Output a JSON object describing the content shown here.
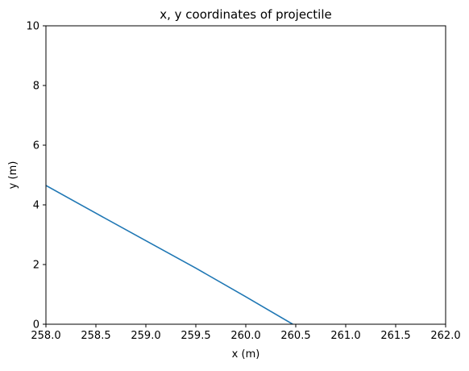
{
  "chart_data": {
    "type": "line",
    "title": "x, y coordinates of projectile",
    "xlabel": "x (m)",
    "ylabel": "y (m)",
    "xlim": [
      258.0,
      262.0
    ],
    "ylim": [
      0,
      10
    ],
    "x_ticks": [
      "258.0",
      "258.5",
      "259.0",
      "259.5",
      "260.0",
      "260.5",
      "261.0",
      "261.5",
      "262.0"
    ],
    "y_ticks": [
      "0",
      "2",
      "4",
      "6",
      "8",
      "10"
    ],
    "grid": false,
    "line_color": "#1f77b4",
    "series": [
      {
        "x": [
          258.0,
          258.5,
          259.0,
          259.5,
          260.0,
          260.47
        ],
        "y": [
          4.65,
          3.72,
          2.8,
          1.88,
          0.92,
          0.0
        ]
      }
    ]
  }
}
